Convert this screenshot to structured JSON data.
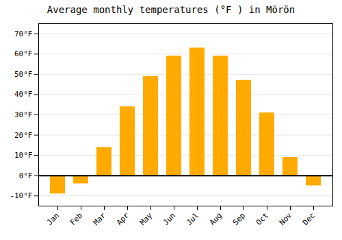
{
  "chart_data": {
    "type": "bar",
    "title": "Average monthly temperatures (°F ) in Mörön",
    "categories": [
      "Jan",
      "Feb",
      "Mar",
      "Apr",
      "May",
      "Jun",
      "Jul",
      "Aug",
      "Sep",
      "Oct",
      "Nov",
      "Dec"
    ],
    "values": [
      -9,
      -4,
      14,
      34,
      49,
      59,
      63,
      59,
      47,
      31,
      9,
      -5
    ],
    "color": "#FFAA00",
    "ylim": [
      -15,
      75
    ],
    "yticks": [
      {
        "value": -10,
        "label": "-10°F"
      },
      {
        "value": 0,
        "label": "0°F"
      },
      {
        "value": 10,
        "label": "10°F"
      },
      {
        "value": 20,
        "label": "20°F"
      },
      {
        "value": 30,
        "label": "30°F"
      },
      {
        "value": 40,
        "label": "40°F"
      },
      {
        "value": 50,
        "label": "50°F"
      },
      {
        "value": 60,
        "label": "60°F"
      },
      {
        "value": 70,
        "label": "70°F"
      }
    ],
    "grid": true
  }
}
